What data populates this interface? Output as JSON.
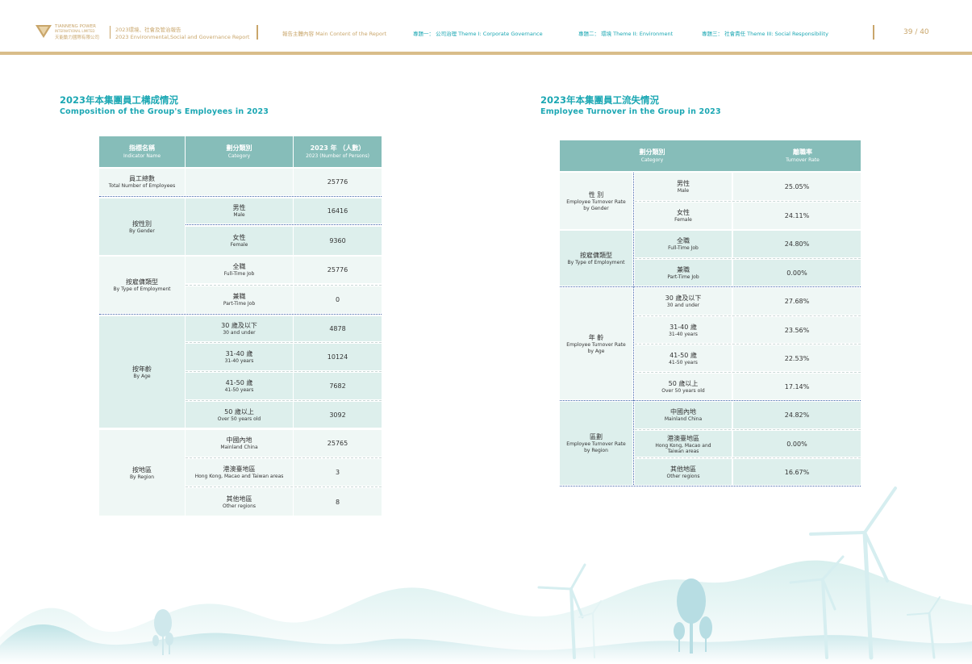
{
  "header": {
    "logo_en_1": "TIANNENG POWER",
    "logo_en_2": "INTERNATIONAL LIMITED",
    "logo_cn": "天能動力國際有限公司",
    "report_title_cn": "2023環境、社會及管治報告",
    "report_title_en": "2023 Environmental,Social and Governance Report",
    "nav_main": "報告主體內容 Main Content of the Report",
    "nav_theme1": "專題一：  公司治理   Theme I: Corporate  Governance",
    "nav_theme2": "專題二：  環境  Theme II: Environment",
    "nav_theme3": "專題三：  社會責任  Theme III: Social Responsibility",
    "page_num": "39 / 40"
  },
  "left": {
    "title_cn": "2023年本集團員工構成情況",
    "title_en": "Composition of the Group's Employees in 2023",
    "headers": [
      {
        "cn": "指標名稱",
        "en": "Indicator Name"
      },
      {
        "cn": "劃分類別",
        "en": "Category"
      },
      {
        "cn": "2023 年  （人數）",
        "en": "2023 (Number of Persons)"
      }
    ],
    "total": {
      "cn": "員工總數",
      "en": "Total Number of Employees",
      "value": "25776"
    },
    "groups": [
      {
        "cn": "按性別",
        "en": "By Gender",
        "rows": [
          {
            "cn": "男性",
            "en": "Male",
            "value": "16416"
          },
          {
            "cn": "女性",
            "en": "Female",
            "value": "9360"
          }
        ]
      },
      {
        "cn": "按雇傭類型",
        "en": "By Type of Employment",
        "rows": [
          {
            "cn": "全職",
            "en": "Full-Time Job",
            "value": "25776"
          },
          {
            "cn": "兼職",
            "en": "Part-Time Job",
            "value": "0"
          }
        ]
      },
      {
        "cn": "按年齡",
        "en": "By Age",
        "rows": [
          {
            "cn": "30 歲及以下",
            "en": "30 and under",
            "value": "4878"
          },
          {
            "cn": "31-40 歲",
            "en": "31-40 years",
            "value": "10124"
          },
          {
            "cn": "41-50 歲",
            "en": "41-50 years",
            "value": "7682"
          },
          {
            "cn": "50 歲以上",
            "en": "Over 50 years old",
            "value": "3092"
          }
        ]
      },
      {
        "cn": "按地區",
        "en": "By Region",
        "rows": [
          {
            "cn": "中國內地",
            "en": "Mainland China",
            "value": "25765"
          },
          {
            "cn": "港澳臺地區",
            "en": "Hong Kong, Macao and Taiwan areas",
            "value": "3"
          },
          {
            "cn": "其他地區",
            "en": "Other regions",
            "value": "8"
          }
        ]
      }
    ]
  },
  "right": {
    "title_cn": "2023年本集團員工流失情況",
    "title_en": "Employee Turnover in the Group in 2023",
    "headers": [
      {
        "cn": "劃分類別",
        "en": "Category"
      },
      {
        "cn": "離職率",
        "en": "Turnover Rate"
      }
    ],
    "groups": [
      {
        "cn": "性 別",
        "en": "Employee Turnover Rate by Gender",
        "rows": [
          {
            "cn": "男性",
            "en": "Male",
            "value": "25.05%"
          },
          {
            "cn": "女性",
            "en": "Female",
            "value": "24.11%"
          }
        ]
      },
      {
        "cn": "按雇傭類型",
        "en": "By Type of Employment",
        "rows": [
          {
            "cn": "全職",
            "en": "Full-Time Job",
            "value": "24.80%"
          },
          {
            "cn": "兼職",
            "en": "Part-Time Job",
            "value": "0.00%"
          }
        ]
      },
      {
        "cn": "年 齡",
        "en": "Employee Turnover Rate by Age",
        "rows": [
          {
            "cn": "30 歲及以下",
            "en": "30 and under",
            "value": "27.68%"
          },
          {
            "cn": "31-40 歲",
            "en": "31-40 years",
            "value": "23.56%"
          },
          {
            "cn": "41-50 歲",
            "en": "41-50 years",
            "value": "22.53%"
          },
          {
            "cn": "50 歲以上",
            "en": "Over 50 years old",
            "value": "17.14%"
          }
        ]
      },
      {
        "cn": "區劃",
        "en": "Employee Turnover Rate by Region",
        "rows": [
          {
            "cn": "中國內地",
            "en": "Mainland China",
            "value": "24.82%"
          },
          {
            "cn": "港澳臺地區",
            "en": "Hong Kong, Macao and Taiwan areas",
            "value": "0.00%"
          },
          {
            "cn": "其他地區",
            "en": "Other regions",
            "value": "16.67%"
          }
        ]
      }
    ]
  },
  "colors": {
    "accent": "#1ba7b3",
    "gold": "#c9a66b",
    "header_bg": "#86bdb9",
    "row_light": "#eff7f5",
    "row_mid": "#ddefec"
  }
}
